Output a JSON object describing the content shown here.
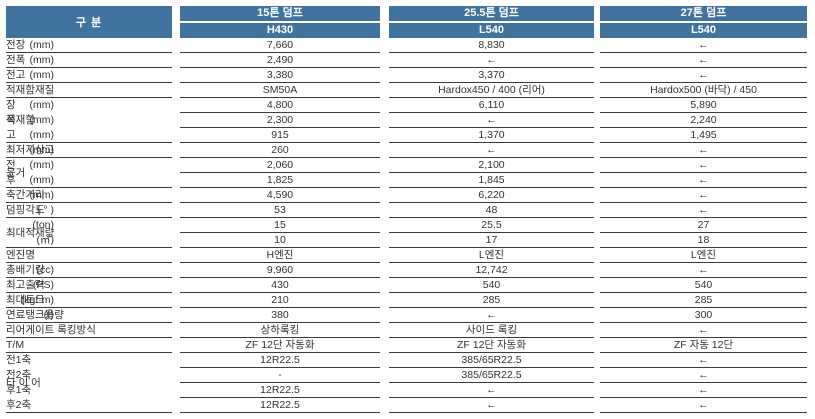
{
  "table": {
    "corner_label": "구 분",
    "columns": [
      {
        "title": "15톤 덤프",
        "model": "H430"
      },
      {
        "title": "25.5톤 덤프",
        "model": "L540"
      },
      {
        "title": "27톤 덤프",
        "model": "L540"
      }
    ],
    "arrow_ditto": "←",
    "rows": [
      {
        "label": "전장",
        "unit": "(mm)",
        "values": [
          "7,660",
          "8,830",
          "←"
        ]
      },
      {
        "label": "전폭",
        "unit": "(mm)",
        "values": [
          "2,490",
          "←",
          "←"
        ]
      },
      {
        "label": "전고",
        "unit": "(mm)",
        "values": [
          "3,380",
          "3,370",
          "←"
        ]
      },
      {
        "label": "적재함재질",
        "unit": "",
        "values": [
          "SM50A",
          "Hardox450 / 400 (리어)",
          "Hardox500 (바닥) / 450"
        ]
      },
      {
        "group": "적재함",
        "group_span": 3,
        "sub": "장",
        "unit": "(mm)",
        "line": "sub",
        "values": [
          "4,800",
          "6,110",
          "5,890"
        ]
      },
      {
        "sub": "폭",
        "unit": "(mm)",
        "line": "sub",
        "values": [
          "2,300",
          "←",
          "2,240"
        ]
      },
      {
        "sub": "고",
        "unit": "(mm)",
        "line": "full",
        "values": [
          "915",
          "1,370",
          "1,495"
        ]
      },
      {
        "label": "최저지상고",
        "unit": "(mm)",
        "values": [
          "260",
          "←",
          "←"
        ]
      },
      {
        "group": "윤거",
        "group_span": 2,
        "sub": "전",
        "unit": "(mm)",
        "line": "sub",
        "values": [
          "2,060",
          "2,100",
          "←"
        ]
      },
      {
        "sub": "후",
        "unit": "(mm)",
        "line": "full",
        "values": [
          "1,825",
          "1,845",
          "←"
        ]
      },
      {
        "label": "축간거리",
        "unit": "(mm)",
        "values": [
          "4,590",
          "6,220",
          "←"
        ]
      },
      {
        "label": "덤핑각도",
        "unit": "( ° )",
        "values": [
          "53",
          "48",
          "←"
        ]
      },
      {
        "group": "최대적재량",
        "group_span": 2,
        "unit": "(ton)",
        "line": "unit",
        "values": [
          "15",
          "25.5",
          "27"
        ]
      },
      {
        "unit": "(㎥)",
        "line": "full",
        "values": [
          "10",
          "17",
          "18"
        ]
      },
      {
        "label": "엔진명",
        "unit": "",
        "values": [
          "H엔진",
          "L엔진",
          "L엔진"
        ]
      },
      {
        "label": "총배기량",
        "unit": "(cc)",
        "values": [
          "9,960",
          "12,742",
          "←"
        ]
      },
      {
        "label": "최고출력",
        "unit": "(PS)",
        "values": [
          "430",
          "540",
          "540"
        ]
      },
      {
        "label": "최대토크",
        "unit": "(kgf·m)",
        "values": [
          "210",
          "285",
          "285"
        ]
      },
      {
        "label": "연료탱크용량",
        "unit": "(ℓ)",
        "values": [
          "380",
          "←",
          "300"
        ]
      },
      {
        "label": "리어게이트 록킹방식",
        "unit": "",
        "values": [
          "상하록킹",
          "사이드 록킹",
          "←"
        ]
      },
      {
        "label": "T/M",
        "unit": "",
        "values": [
          "ZF 12단 자동화",
          "ZF 12단 자동화",
          "ZF 자동 12단"
        ]
      },
      {
        "group": "타 이 어",
        "group_span": 4,
        "sub": "전1축",
        "unit": "",
        "line": "sub",
        "values": [
          "12R22.5",
          "385/65R22.5",
          "←"
        ]
      },
      {
        "sub": "전2축",
        "unit": "",
        "line": "sub",
        "values": [
          "-",
          "385/65R22.5",
          "←"
        ]
      },
      {
        "sub": "후1축",
        "unit": "",
        "line": "sub",
        "values": [
          "12R22.5",
          "←",
          "←"
        ]
      },
      {
        "sub": "후2축",
        "unit": "",
        "line": "full",
        "values": [
          "12R22.5",
          "←",
          "←"
        ]
      }
    ],
    "colors": {
      "header_bg": "#40739d",
      "header_text": "#ffffff",
      "body_text": "#2e3338",
      "rule": "#3b3b3b"
    }
  }
}
